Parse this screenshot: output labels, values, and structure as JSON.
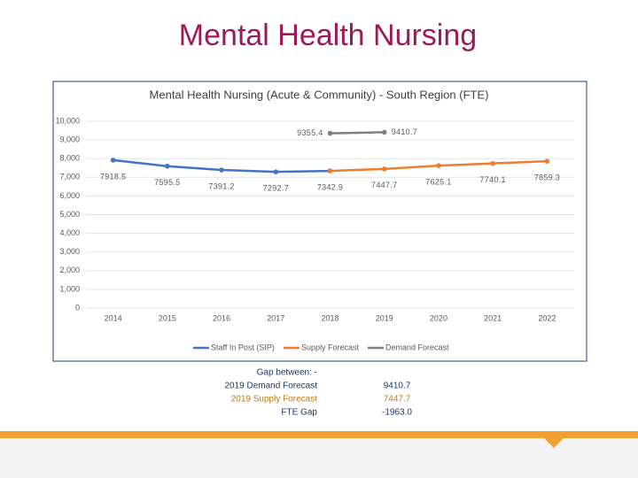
{
  "slide_title": "Mental Health Nursing",
  "chart_data": {
    "type": "line",
    "title": "Mental Health Nursing (Acute & Community) - South Region (FTE)",
    "categories": [
      "2014",
      "2015",
      "2016",
      "2017",
      "2018",
      "2019",
      "2020",
      "2021",
      "2022"
    ],
    "series": [
      {
        "name": "Staff In Post (SIP)",
        "color": "#4472c4",
        "values": [
          7918.5,
          7595.5,
          7391.2,
          7292.7,
          7342.9,
          null,
          null,
          null,
          null
        ]
      },
      {
        "name": "Supply Forecast",
        "color": "#ed7d31",
        "values": [
          null,
          null,
          null,
          null,
          7342.9,
          7447.7,
          7625.1,
          7740.1,
          7859.3
        ]
      },
      {
        "name": "Demand Forecast",
        "color": "#7f7f7f",
        "values": [
          null,
          null,
          null,
          null,
          9355.4,
          9410.7,
          null,
          null,
          null
        ]
      }
    ],
    "ylim": [
      0,
      10000
    ],
    "yticks": [
      0,
      {
        "value": 1000,
        "label": "1,000"
      },
      {
        "value": 2000,
        "label": "2,000"
      },
      {
        "value": 3000,
        "label": "3,000"
      },
      {
        "value": 4000,
        "label": "4,000"
      },
      {
        "value": 5000,
        "label": "5,000"
      },
      {
        "value": 6000,
        "label": "6,000"
      },
      {
        "value": 7000,
        "label": "7,000"
      },
      {
        "value": 8000,
        "label": "8,000"
      },
      {
        "value": 9000,
        "label": "9,000"
      },
      {
        "value": 10000,
        "label": "10,000"
      }
    ],
    "grid": true,
    "legend": "bottom"
  },
  "gap_table": {
    "heading": "Gap between: -",
    "rows": [
      {
        "label": "2019 Demand Forecast",
        "value": "9410.7"
      },
      {
        "label": "2019 Supply Forecast",
        "value": "7447.7"
      },
      {
        "label": "FTE Gap",
        "value": "-1963.0"
      }
    ]
  }
}
